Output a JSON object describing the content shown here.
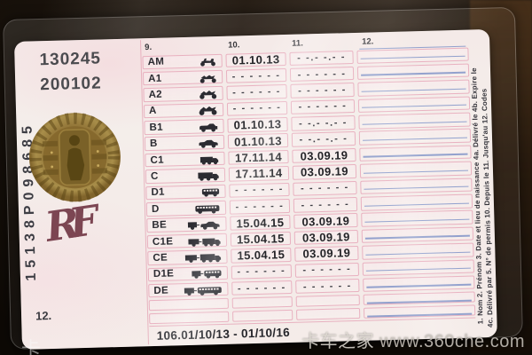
{
  "card": {
    "top_numbers": [
      "130245",
      "200102"
    ],
    "serial_number_vertical": "15138P098685",
    "hologram_icon": "golden-seal-icon",
    "rf_monogram": "RF",
    "field12_label": "12.",
    "bottom_code_line": "106.01/10/13 - 01/10/16",
    "right_edge_legend_line1": "1. Nom  2. Prénom  3. Date et lieu de naissance  4a. Délivré le  4b. Expire le",
    "right_edge_legend_line2": "4c. Délivré par  5. N° de permis  10. Depuis le  11. Jusqu'au  12. Codes",
    "table": {
      "column_headers": [
        "9.",
        "10.",
        "11.",
        "12."
      ],
      "rows": [
        {
          "category": "AM",
          "icon": "moped-icon",
          "col10": "01.10.13",
          "col11": "- -.- -.- -"
        },
        {
          "category": "A1",
          "icon": "light-motorcycle-icon",
          "col10": "- - - - - -",
          "col11": "- - - - - -"
        },
        {
          "category": "A2",
          "icon": "motorcycle-icon",
          "col10": "- - - - - -",
          "col11": "- - - - - -"
        },
        {
          "category": "A",
          "icon": "heavy-motorcycle-icon",
          "col10": "- - - - - -",
          "col11": "- - - - - -"
        },
        {
          "category": "B1",
          "icon": "quadricycle-icon",
          "col10": "01.10.13",
          "col11": "- -.- -.- -"
        },
        {
          "category": "B",
          "icon": "car-icon",
          "col10": "01.10.13",
          "col11": "- -.- -.- -"
        },
        {
          "category": "C1",
          "icon": "medium-truck-icon",
          "col10": "17.11.14",
          "col11": "03.09.19"
        },
        {
          "category": "C",
          "icon": "truck-icon",
          "col10": "17.11.14",
          "col11": "03.09.19"
        },
        {
          "category": "D1",
          "icon": "minibus-icon",
          "col10": "- - - - - -",
          "col11": "- - - - - -"
        },
        {
          "category": "D",
          "icon": "bus-icon",
          "col10": "- - - - - -",
          "col11": "- - - - - -"
        },
        {
          "category": "BE",
          "icon": "car-trailer-icon",
          "col10": "15.04.15",
          "col11": "03.09.19"
        },
        {
          "category": "C1E",
          "icon": "medium-truck-trailer-icon",
          "col10": "15.04.15",
          "col11": "03.09.19"
        },
        {
          "category": "CE",
          "icon": "truck-trailer-icon",
          "col10": "15.04.15",
          "col11": "03.09.19"
        },
        {
          "category": "D1E",
          "icon": "minibus-trailer-icon",
          "col10": "- - - - - -",
          "col11": "- - - - - -"
        },
        {
          "category": "DE",
          "icon": "bus-trailer-icon",
          "col10": "- - - - - -",
          "col11": "- - - - - -"
        }
      ],
      "empty_row_count": 2
    }
  },
  "watermark": {
    "site_name_cjk": "卡车之家",
    "site_url": "www.360che.com",
    "corner_glyph": "卡"
  },
  "colors": {
    "pink_line": "#e7aebc",
    "blue_line": "#8093c8",
    "hologram_gold": "#8a6c2e",
    "rf_maroon": "#6c2f3e",
    "background_dark": "#17110b"
  }
}
